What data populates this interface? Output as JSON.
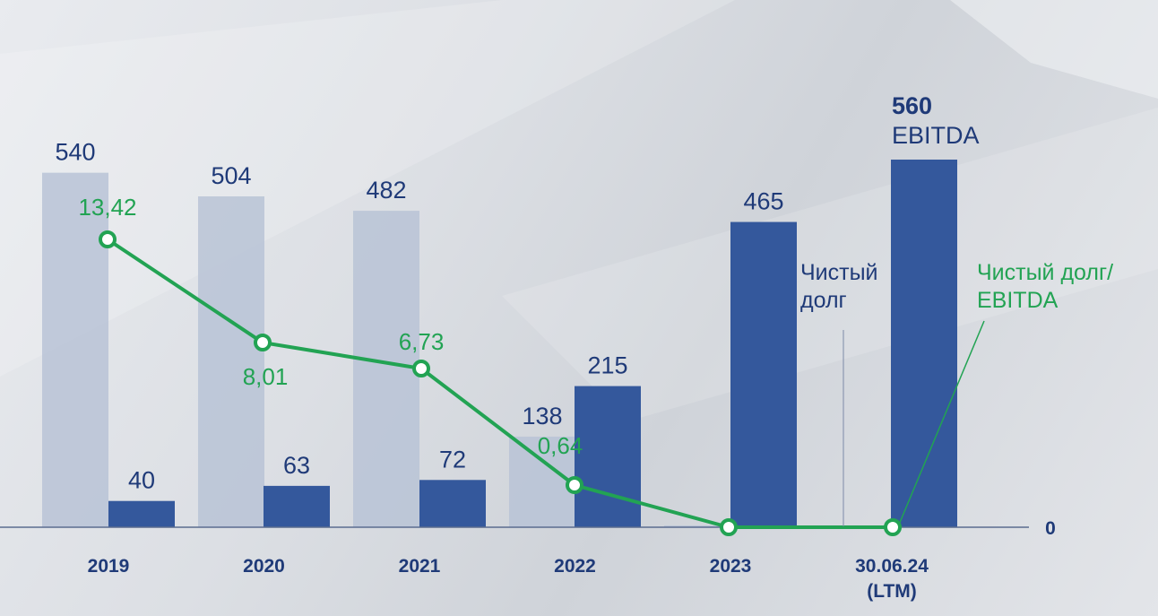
{
  "chart_data": {
    "type": "bar",
    "categories": [
      "2019",
      "2020",
      "2021",
      "2022",
      "2023",
      "30.06.24\n(LTM)"
    ],
    "series": [
      {
        "name": "Чистый долг",
        "values": [
          540,
          504,
          482,
          138,
          0,
          null
        ],
        "color": "#b9c3d6"
      },
      {
        "name": "EBITDA",
        "values": [
          40,
          63,
          72,
          215,
          465,
          560
        ],
        "color": "#34589c"
      },
      {
        "name": "Чистый долг/ EBITDA",
        "type": "line",
        "values": [
          13.42,
          8.01,
          6.73,
          0.64,
          0,
          0
        ],
        "labels": [
          "13,42",
          "8,01",
          "6,73",
          "0,64",
          "",
          ""
        ],
        "color": "#22a353"
      }
    ],
    "bar_labels": {
      "net_debt": [
        "540",
        "504",
        "482",
        "138",
        "",
        ""
      ],
      "ebitda": [
        "40",
        "63",
        "72",
        "215",
        "465",
        "560"
      ]
    },
    "ebitda_callout": "EBITDA",
    "net_debt_callout": [
      "Чистый",
      "долг"
    ],
    "ratio_callout": [
      "Чистый долг/",
      "EBITDA"
    ],
    "ratio_axis_tick": "0",
    "ylim_bars": [
      0,
      560
    ],
    "ylim_ratio": [
      0,
      13.42
    ],
    "grid": false,
    "legend": "callouts"
  }
}
